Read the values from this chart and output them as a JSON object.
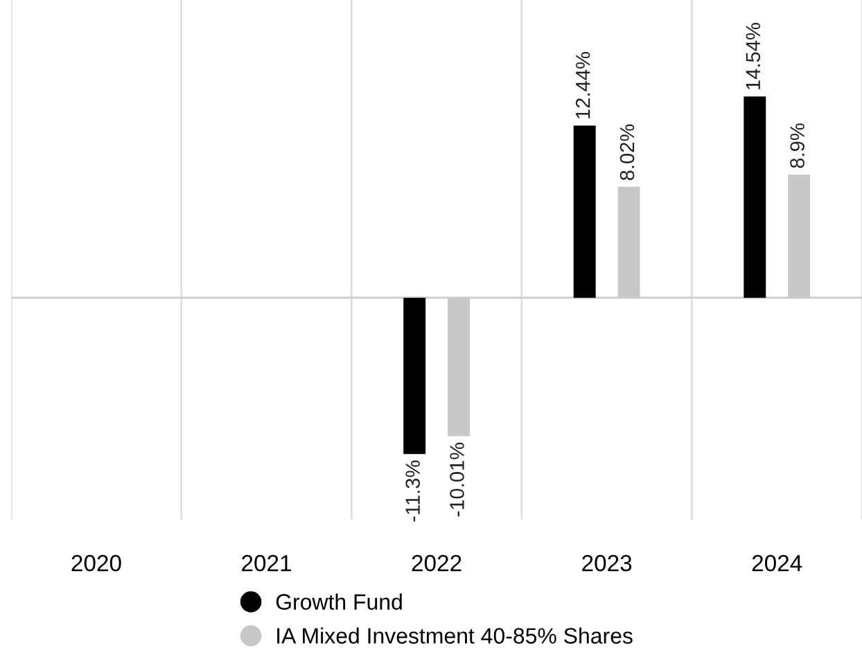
{
  "chart_data": {
    "type": "bar",
    "categories": [
      "2020",
      "2021",
      "2022",
      "2023",
      "2024"
    ],
    "series": [
      {
        "name": "Growth Fund",
        "color": "#000000",
        "values": [
          null,
          null,
          -11.3,
          12.44,
          14.54
        ],
        "value_labels": [
          null,
          null,
          "-11.3%",
          "12.44%",
          "14.54%"
        ]
      },
      {
        "name": "IA Mixed Investment 40-85% Shares",
        "color": "#c8c8c8",
        "values": [
          null,
          null,
          -10.01,
          8.02,
          8.9
        ],
        "value_labels": [
          null,
          null,
          "-10.01%",
          "8.02%",
          "8.9%"
        ]
      }
    ],
    "grid": "x",
    "legend": "bottom",
    "marker": "circle"
  }
}
